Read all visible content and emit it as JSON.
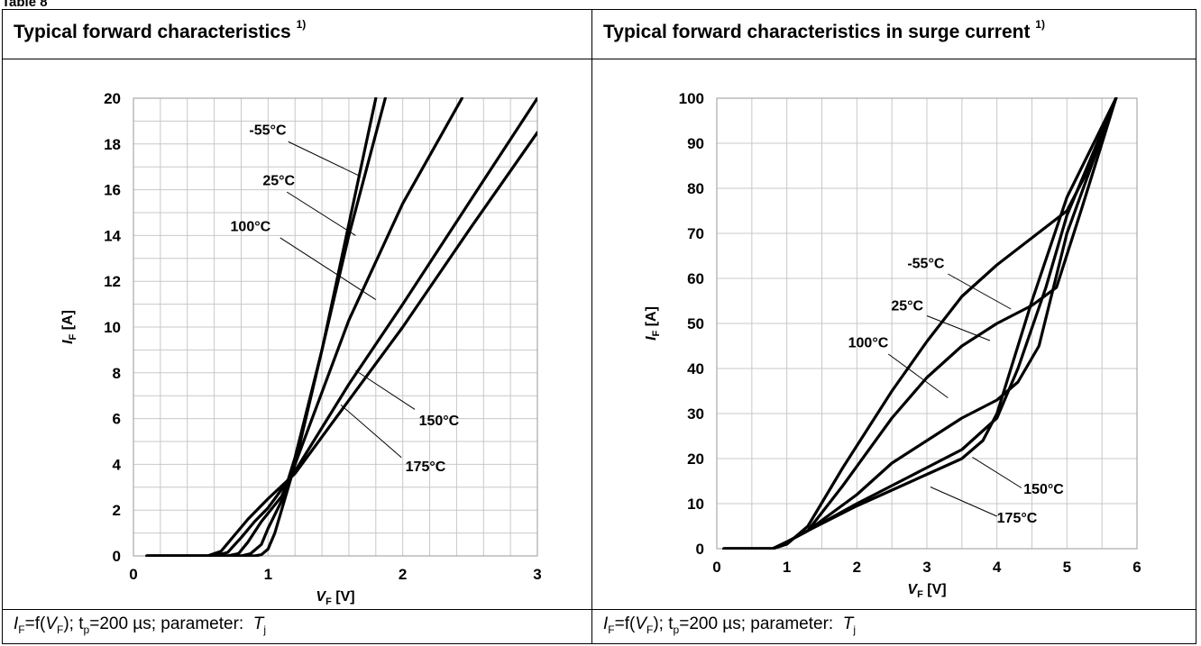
{
  "table_label": "Table 8",
  "left_panel": {
    "title": "Typical forward characteristics",
    "title_sup": "1)",
    "caption": {
      "f_prefix": "=f(",
      "f_suffix": "); t",
      "tp_sub": "p",
      "tp_value": "=200 µs; parameter: ",
      "I": "I",
      "F": "F",
      "V": "V",
      "T": "T",
      "j": "j"
    }
  },
  "right_panel": {
    "title": "Typical forward characteristics in surge current",
    "title_sup": "1)",
    "caption": {
      "f_prefix": "=f(",
      "f_suffix": "); t",
      "tp_sub": "p",
      "tp_value": "=200 µs; parameter: ",
      "I": "I",
      "F": "F",
      "V": "V",
      "T": "T",
      "j": "j"
    }
  },
  "chart_data": [
    {
      "type": "line",
      "title": "Typical forward characteristics",
      "xlabel": "V_F [V]",
      "ylabel": "I_F [A]",
      "xlim": [
        0,
        3
      ],
      "ylim": [
        0,
        20
      ],
      "x_ticks": [
        "0",
        "1",
        "2",
        "3"
      ],
      "y_ticks": [
        "0",
        "2",
        "4",
        "6",
        "8",
        "10",
        "12",
        "14",
        "16",
        "18",
        "20"
      ],
      "x_tick_values": [
        0,
        1,
        2,
        3
      ],
      "y_tick_values": [
        0,
        2,
        4,
        6,
        8,
        10,
        12,
        14,
        16,
        18,
        20
      ],
      "x_minor_step": 0.2,
      "y_minor_step": 1,
      "grid": true,
      "series": [
        {
          "name": "-55°C",
          "points": [
            [
              0.1,
              0
            ],
            [
              0.9,
              0
            ],
            [
              0.95,
              0.05
            ],
            [
              1.0,
              0.3
            ],
            [
              1.05,
              1.0
            ],
            [
              1.1,
              2.0
            ],
            [
              1.2,
              4.0
            ],
            [
              1.4,
              9.0
            ],
            [
              1.6,
              14.5
            ],
            [
              1.8,
              20
            ]
          ]
        },
        {
          "name": "25°C",
          "points": [
            [
              0.1,
              0
            ],
            [
              0.8,
              0
            ],
            [
              0.87,
              0.1
            ],
            [
              0.95,
              0.5
            ],
            [
              1.0,
              1.2
            ],
            [
              1.1,
              2.4
            ],
            [
              1.2,
              4.3
            ],
            [
              1.4,
              9.0
            ],
            [
              1.6,
              14.0
            ],
            [
              1.87,
              20
            ]
          ]
        },
        {
          "name": "100°C",
          "points": [
            [
              0.1,
              0
            ],
            [
              0.7,
              0
            ],
            [
              0.78,
              0.1
            ],
            [
              0.85,
              0.6
            ],
            [
              0.95,
              1.5
            ],
            [
              1.1,
              2.6
            ],
            [
              1.2,
              4.0
            ],
            [
              1.6,
              10.3
            ],
            [
              2.0,
              15.4
            ],
            [
              2.44,
              20
            ]
          ]
        },
        {
          "name": "150°C",
          "points": [
            [
              0.1,
              0
            ],
            [
              0.6,
              0
            ],
            [
              0.7,
              0.15
            ],
            [
              0.8,
              0.8
            ],
            [
              0.9,
              1.5
            ],
            [
              1.0,
              2.1
            ],
            [
              1.2,
              3.7
            ],
            [
              1.6,
              7.5
            ],
            [
              2.0,
              11.0
            ],
            [
              2.5,
              15.5
            ],
            [
              3.0,
              20
            ]
          ]
        },
        {
          "name": "175°C",
          "points": [
            [
              0.1,
              0
            ],
            [
              0.55,
              0
            ],
            [
              0.65,
              0.2
            ],
            [
              0.75,
              0.9
            ],
            [
              0.85,
              1.6
            ],
            [
              1.0,
              2.5
            ],
            [
              1.2,
              3.6
            ],
            [
              1.5,
              6.0
            ],
            [
              2.0,
              10.0
            ],
            [
              2.5,
              14.3
            ],
            [
              3.0,
              18.5
            ]
          ]
        }
      ],
      "annotations": [
        {
          "label": "-55°C",
          "text_x": 0.86,
          "text_y": 18.4,
          "anchor": "start",
          "line": [
            [
              1.15,
              18.1
            ],
            [
              1.68,
              16.6
            ]
          ]
        },
        {
          "label": "25°C",
          "text_x": 0.96,
          "text_y": 16.2,
          "anchor": "start",
          "line": [
            [
              1.14,
              15.9
            ],
            [
              1.65,
              14.0
            ]
          ]
        },
        {
          "label": "100°C",
          "text_x": 0.72,
          "text_y": 14.2,
          "anchor": "start",
          "line": [
            [
              1.09,
              13.9
            ],
            [
              1.8,
              11.2
            ]
          ]
        },
        {
          "label": "150°C",
          "text_x": 2.12,
          "text_y": 5.7,
          "anchor": "start",
          "line": [
            [
              1.65,
              8.1
            ],
            [
              2.09,
              6.4
            ]
          ]
        },
        {
          "label": "175°C",
          "text_x": 2.02,
          "text_y": 3.7,
          "anchor": "start",
          "line": [
            [
              1.54,
              6.6
            ],
            [
              1.99,
              4.3
            ]
          ]
        }
      ]
    },
    {
      "type": "line",
      "title": "Typical forward characteristics in surge current",
      "xlabel": "V_F [V]",
      "ylabel": "I_F [A]",
      "xlim": [
        0,
        6
      ],
      "ylim": [
        0,
        100
      ],
      "x_ticks": [
        "0",
        "1",
        "2",
        "3",
        "4",
        "5",
        "6"
      ],
      "y_ticks": [
        "0",
        "10",
        "20",
        "30",
        "40",
        "50",
        "60",
        "70",
        "80",
        "90",
        "100"
      ],
      "x_tick_values": [
        0,
        1,
        2,
        3,
        4,
        5,
        6
      ],
      "y_tick_values": [
        0,
        10,
        20,
        30,
        40,
        50,
        60,
        70,
        80,
        90,
        100
      ],
      "x_minor_step": 0.5,
      "y_minor_step": 10,
      "grid": true,
      "series": [
        {
          "name": "-55°C",
          "points": [
            [
              0.1,
              0
            ],
            [
              0.8,
              0
            ],
            [
              1.0,
              1
            ],
            [
              1.3,
              5
            ],
            [
              1.8,
              18
            ],
            [
              2.5,
              35
            ],
            [
              3.0,
              46
            ],
            [
              3.5,
              56
            ],
            [
              4.0,
              63
            ],
            [
              4.5,
              69
            ],
            [
              5.0,
              75
            ],
            [
              5.3,
              84
            ],
            [
              5.7,
              100
            ]
          ]
        },
        {
          "name": "25°C",
          "points": [
            [
              0.1,
              0
            ],
            [
              0.8,
              0
            ],
            [
              1.0,
              1.5
            ],
            [
              1.3,
              4
            ],
            [
              1.8,
              14
            ],
            [
              2.5,
              29
            ],
            [
              3.0,
              38
            ],
            [
              3.5,
              45
            ],
            [
              4.0,
              50
            ],
            [
              4.5,
              54
            ],
            [
              4.85,
              58
            ],
            [
              5.2,
              75
            ],
            [
              5.7,
              100
            ]
          ]
        },
        {
          "name": "100°C",
          "points": [
            [
              0.1,
              0
            ],
            [
              0.8,
              0
            ],
            [
              1.0,
              1.5
            ],
            [
              1.3,
              4
            ],
            [
              2.0,
              12
            ],
            [
              2.5,
              19
            ],
            [
              3.0,
              24
            ],
            [
              3.5,
              29
            ],
            [
              4.0,
              33
            ],
            [
              4.3,
              37
            ],
            [
              4.6,
              45
            ],
            [
              5.0,
              70
            ],
            [
              5.7,
              100
            ]
          ]
        },
        {
          "name": "150°C",
          "points": [
            [
              0.1,
              0
            ],
            [
              0.8,
              0
            ],
            [
              1.0,
              1.5
            ],
            [
              1.3,
              4
            ],
            [
              2.0,
              10
            ],
            [
              2.5,
              14
            ],
            [
              3.0,
              18
            ],
            [
              3.5,
              22
            ],
            [
              4.0,
              29
            ],
            [
              4.3,
              40
            ],
            [
              4.7,
              58
            ],
            [
              5.0,
              74
            ],
            [
              5.7,
              100
            ]
          ]
        },
        {
          "name": "175°C",
          "points": [
            [
              0.1,
              0
            ],
            [
              0.8,
              0
            ],
            [
              1.0,
              1.5
            ],
            [
              1.3,
              4
            ],
            [
              2.0,
              9.5
            ],
            [
              2.5,
              13
            ],
            [
              3.0,
              16.5
            ],
            [
              3.5,
              20
            ],
            [
              3.8,
              24
            ],
            [
              4.0,
              30
            ],
            [
              4.5,
              55
            ],
            [
              5.0,
              78
            ],
            [
              5.7,
              100
            ]
          ]
        }
      ],
      "annotations": [
        {
          "label": "-55°C",
          "text_x": 3.25,
          "text_y": 62.3,
          "anchor": "end",
          "line": [
            [
              3.3,
              61
            ],
            [
              4.2,
              53.2
            ]
          ]
        },
        {
          "label": "25°C",
          "text_x": 2.95,
          "text_y": 52.9,
          "anchor": "end",
          "line": [
            [
              3.0,
              51.7
            ],
            [
              3.9,
              46.2
            ]
          ]
        },
        {
          "label": "100°C",
          "text_x": 2.45,
          "text_y": 44.7,
          "anchor": "end",
          "line": [
            [
              2.45,
              43.2
            ],
            [
              3.3,
              33.5
            ]
          ]
        },
        {
          "label": "150°C",
          "text_x": 4.38,
          "text_y": 12.2,
          "anchor": "start",
          "line": [
            [
              3.65,
              20.3
            ],
            [
              4.35,
              13.5
            ]
          ]
        },
        {
          "label": "175°C",
          "text_x": 4.0,
          "text_y": 5.8,
          "anchor": "start",
          "line": [
            [
              3.05,
              13.7
            ],
            [
              4.0,
              7.2
            ]
          ]
        }
      ]
    }
  ]
}
